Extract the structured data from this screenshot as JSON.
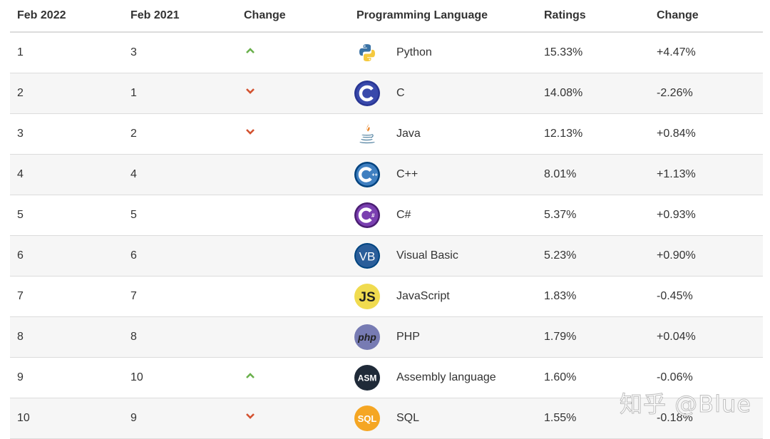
{
  "headers": {
    "col1": "Feb 2022",
    "col2": "Feb 2021",
    "col3": "Change",
    "col4": "Programming Language",
    "col5": "Ratings",
    "col6": "Change"
  },
  "colors": {
    "up_arrow": "#6ab04c",
    "down_arrow": "#d35230",
    "row_alt": "#f6f6f6",
    "border": "#dcdcdc"
  },
  "rows": [
    {
      "rank_now": "1",
      "rank_prev": "3",
      "trend": "up",
      "logo": "python-logo",
      "language": "Python",
      "rating": "15.33%",
      "change": "+4.47%"
    },
    {
      "rank_now": "2",
      "rank_prev": "1",
      "trend": "down",
      "logo": "c-logo",
      "language": "C",
      "rating": "14.08%",
      "change": "-2.26%"
    },
    {
      "rank_now": "3",
      "rank_prev": "2",
      "trend": "down",
      "logo": "java-logo",
      "language": "Java",
      "rating": "12.13%",
      "change": "+0.84%"
    },
    {
      "rank_now": "4",
      "rank_prev": "4",
      "trend": "none",
      "logo": "cpp-logo",
      "language": "C++",
      "rating": "8.01%",
      "change": "+1.13%"
    },
    {
      "rank_now": "5",
      "rank_prev": "5",
      "trend": "none",
      "logo": "csharp-logo",
      "language": "C#",
      "rating": "5.37%",
      "change": "+0.93%"
    },
    {
      "rank_now": "6",
      "rank_prev": "6",
      "trend": "none",
      "logo": "visual-basic-logo",
      "language": "Visual Basic",
      "rating": "5.23%",
      "change": "+0.90%"
    },
    {
      "rank_now": "7",
      "rank_prev": "7",
      "trend": "none",
      "logo": "javascript-logo",
      "language": "JavaScript",
      "rating": "1.83%",
      "change": "-0.45%"
    },
    {
      "rank_now": "8",
      "rank_prev": "8",
      "trend": "none",
      "logo": "php-logo",
      "language": "PHP",
      "rating": "1.79%",
      "change": "+0.04%"
    },
    {
      "rank_now": "9",
      "rank_prev": "10",
      "trend": "up",
      "logo": "assembly-logo",
      "language": "Assembly language",
      "rating": "1.60%",
      "change": "-0.06%"
    },
    {
      "rank_now": "10",
      "rank_prev": "9",
      "trend": "down",
      "logo": "sql-logo",
      "language": "SQL",
      "rating": "1.55%",
      "change": "-0.18%"
    }
  ],
  "logo_text": {
    "visual_basic": "VB",
    "javascript": "JS",
    "php": "php",
    "assembly": "ASM",
    "sql": "SQL"
  },
  "watermark": "知乎 @Blue"
}
